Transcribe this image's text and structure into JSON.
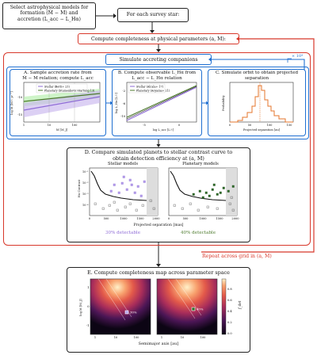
{
  "top_left_box": {
    "line1": "Select astrophysical models for",
    "line2": "formation (Ṁ − M) and",
    "line3": "accretion (L_acc − L_Hα)"
  },
  "top_right_box": {
    "label": "For each survey star:"
  },
  "completeness_box": {
    "label": "Compute completeness at physical parameters (a, M):"
  },
  "simulate_box": {
    "label": "Simulate accreting companions",
    "repeat_label": "× 10⁴"
  },
  "panel_a": {
    "title1": "A. Sample accretion rate from",
    "title2": "Ṁ − M relation; compute L_acc",
    "legend1": "Stellar (Betti+ 23)",
    "legend2": "Planetary (Stamenkovic-Hartung 13)",
    "ylabel": "log Ṁ [M☉ yr⁻¹]",
    "xlabel": "M [M_J]",
    "xticks": [
      "1",
      "10",
      "100"
    ],
    "yticks": [
      "-10",
      "-15"
    ]
  },
  "panel_b": {
    "title1": "B. Compute observable L_Hα from",
    "title2": "L_acc − L_Hα relation",
    "legend1": "Stellar (Alcala+ 17)",
    "legend2": "Planetary (Aoyama+ 21)",
    "ylabel": "log L_Hα [L☉]",
    "xlabel": "log L_acc [L☉]",
    "xticks": [
      "-5",
      "0"
    ],
    "yticks": [
      "-2",
      "-6",
      "-10"
    ]
  },
  "panel_c": {
    "title1": "C. Simulate orbit to obtain projected",
    "title2": "separation",
    "ylabel": "Probability",
    "xlabel": "Projected separation [au]",
    "xticks": [
      "0",
      "50",
      "100",
      "150"
    ]
  },
  "panel_d": {
    "title1": "D. Compare simulated planets to stellar contrast curve to",
    "title2": "obtain detection efficiency at (a, M)",
    "left_label": "Stellar models",
    "right_label": "Planetary models",
    "ylabel": "Hα Contrast",
    "xlabel": "Projected separation [mas]",
    "xticks": [
      "0",
      "500",
      "1000",
      "1500",
      "2000"
    ],
    "yticks": [
      "10⁻¹",
      "10⁻²",
      "10⁻³",
      "10⁻⁴"
    ],
    "left_result": "30% detectable",
    "right_result": "40% detectable"
  },
  "repeat": {
    "label": "Repeat across grid in (a, M)"
  },
  "panel_e": {
    "title": "E. Compute completeness map across parameter space",
    "ylabel": "log M [M_J]",
    "xlabel": "Semimajor axis [au]",
    "xticks": [
      "1",
      "10",
      "100"
    ],
    "yticks": [
      "1",
      "0",
      "-1"
    ],
    "left_marker": "30%",
    "right_marker": "40%",
    "colorbar_label": "f_det",
    "colorbar_ticks": [
      "0.8",
      "0.6",
      "0.4",
      "0.2",
      "0.0"
    ]
  },
  "colors": {
    "blue": "#1f6fd1",
    "red": "#d8382b",
    "purple": "#8e6bd6",
    "green": "#4c7a2c",
    "orange": "#e5752b"
  }
}
